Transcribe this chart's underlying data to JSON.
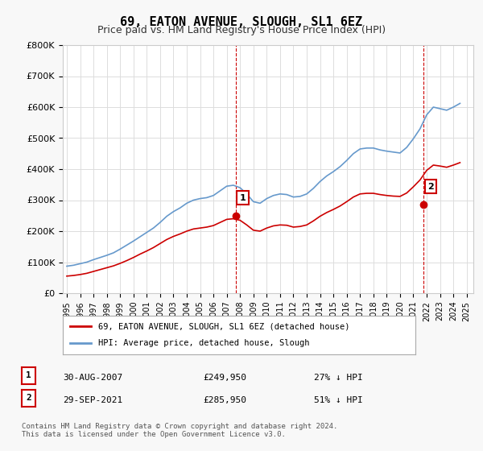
{
  "title": "69, EATON AVENUE, SLOUGH, SL1 6EZ",
  "subtitle": "Price paid vs. HM Land Registry's House Price Index (HPI)",
  "ylabel_ticks": [
    "£0",
    "£100K",
    "£200K",
    "£300K",
    "£400K",
    "£500K",
    "£600K",
    "£700K",
    "£800K"
  ],
  "ylim": [
    0,
    800000
  ],
  "xlim_start": 1995.0,
  "xlim_end": 2025.5,
  "point1_x": 2007.66,
  "point1_y": 249950,
  "point1_label": "1",
  "point2_x": 2021.75,
  "point2_y": 285950,
  "point2_label": "2",
  "line_color_red": "#cc0000",
  "line_color_blue": "#6699cc",
  "point_marker_color": "#cc0000",
  "annotation_box_color": "#cc0000",
  "legend_label_red": "69, EATON AVENUE, SLOUGH, SL1 6EZ (detached house)",
  "legend_label_blue": "HPI: Average price, detached house, Slough",
  "table_row1": [
    "1",
    "30-AUG-2007",
    "£249,950",
    "27% ↓ HPI"
  ],
  "table_row2": [
    "2",
    "29-SEP-2021",
    "£285,950",
    "51% ↓ HPI"
  ],
  "footer": "Contains HM Land Registry data © Crown copyright and database right 2024.\nThis data is licensed under the Open Government Licence v3.0.",
  "hpi_years": [
    1995.0,
    1995.5,
    1996.0,
    1996.5,
    1997.0,
    1997.5,
    1998.0,
    1998.5,
    1999.0,
    1999.5,
    2000.0,
    2000.5,
    2001.0,
    2001.5,
    2002.0,
    2002.5,
    2003.0,
    2003.5,
    2004.0,
    2004.5,
    2005.0,
    2005.5,
    2006.0,
    2006.5,
    2007.0,
    2007.5,
    2008.0,
    2008.5,
    2009.0,
    2009.5,
    2010.0,
    2010.5,
    2011.0,
    2011.5,
    2012.0,
    2012.5,
    2013.0,
    2013.5,
    2014.0,
    2014.5,
    2015.0,
    2015.5,
    2016.0,
    2016.5,
    2017.0,
    2017.5,
    2018.0,
    2018.5,
    2019.0,
    2019.5,
    2020.0,
    2020.5,
    2021.0,
    2021.5,
    2022.0,
    2022.5,
    2023.0,
    2023.5,
    2024.0,
    2024.5
  ],
  "hpi_values": [
    87000,
    90000,
    95000,
    100000,
    108000,
    115000,
    122000,
    130000,
    142000,
    155000,
    168000,
    182000,
    196000,
    210000,
    228000,
    248000,
    263000,
    275000,
    290000,
    300000,
    305000,
    308000,
    315000,
    330000,
    345000,
    348000,
    340000,
    320000,
    295000,
    290000,
    305000,
    315000,
    320000,
    318000,
    310000,
    312000,
    320000,
    338000,
    360000,
    378000,
    392000,
    408000,
    428000,
    450000,
    465000,
    468000,
    468000,
    462000,
    458000,
    455000,
    452000,
    470000,
    498000,
    530000,
    575000,
    600000,
    595000,
    590000,
    600000,
    612000
  ],
  "prop_years": [
    1995.0,
    1995.5,
    1996.0,
    1996.5,
    1997.0,
    1997.5,
    1998.0,
    1998.5,
    1999.0,
    1999.5,
    2000.0,
    2000.5,
    2001.0,
    2001.5,
    2002.0,
    2002.5,
    2003.0,
    2003.5,
    2004.0,
    2004.5,
    2005.0,
    2005.5,
    2006.0,
    2006.5,
    2007.0,
    2007.5,
    2008.0,
    2008.5,
    2009.0,
    2009.5,
    2010.0,
    2010.5,
    2011.0,
    2011.5,
    2012.0,
    2012.5,
    2013.0,
    2013.5,
    2014.0,
    2014.5,
    2015.0,
    2015.5,
    2016.0,
    2016.5,
    2017.0,
    2017.5,
    2018.0,
    2018.5,
    2019.0,
    2019.5,
    2020.0,
    2020.5,
    2021.0,
    2021.5,
    2022.0,
    2022.5,
    2023.0,
    2023.5,
    2024.0,
    2024.5
  ],
  "prop_values": [
    55000,
    57000,
    60000,
    64000,
    70000,
    76000,
    82000,
    88000,
    96000,
    105000,
    115000,
    126000,
    136000,
    147000,
    160000,
    173000,
    183000,
    191000,
    200000,
    207000,
    210000,
    213000,
    218000,
    228000,
    238000,
    240000,
    235000,
    220000,
    203000,
    200000,
    210000,
    217000,
    220000,
    219000,
    213000,
    215000,
    220000,
    233000,
    248000,
    260000,
    270000,
    281000,
    295000,
    310000,
    320000,
    322000,
    322000,
    318000,
    315000,
    313000,
    312000,
    323000,
    343000,
    365000,
    396000,
    413000,
    410000,
    406000,
    413000,
    421000
  ],
  "bg_color": "#f8f8f8",
  "plot_bg_color": "#ffffff",
  "grid_color": "#dddddd"
}
